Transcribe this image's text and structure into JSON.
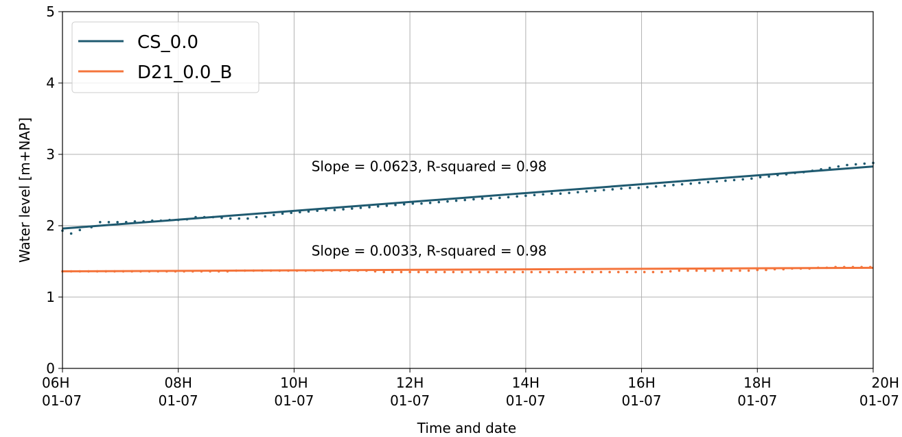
{
  "chart_data": {
    "type": "line",
    "xlabel": "Time and date",
    "ylabel": "Water level [m+NAP]",
    "x_range_hours": [
      6,
      20
    ],
    "ylim": [
      0,
      5
    ],
    "grid": true,
    "legend_position": "top-left",
    "x_ticks": [
      {
        "value": 6,
        "line1": "06H",
        "line2": "01-07"
      },
      {
        "value": 8,
        "line1": "08H",
        "line2": "01-07"
      },
      {
        "value": 10,
        "line1": "10H",
        "line2": "01-07"
      },
      {
        "value": 12,
        "line1": "12H",
        "line2": "01-07"
      },
      {
        "value": 14,
        "line1": "14H",
        "line2": "01-07"
      },
      {
        "value": 16,
        "line1": "16H",
        "line2": "01-07"
      },
      {
        "value": 18,
        "line1": "18H",
        "line2": "01-07"
      },
      {
        "value": 20,
        "line1": "20H",
        "line2": "01-07"
      }
    ],
    "y_ticks": [
      "0",
      "1",
      "2",
      "3",
      "4",
      "5"
    ],
    "series": [
      {
        "name": "CS_0.0",
        "color": "#1f5a70",
        "trend": {
          "start": [
            6,
            1.96
          ],
          "end": [
            20,
            2.83
          ]
        },
        "annotation": {
          "text": "Slope = 0.0623, R-squared = 0.98",
          "x": 10.3,
          "y": 2.83
        },
        "observed": [
          [
            6.0,
            1.93
          ],
          [
            6.15,
            1.89
          ],
          [
            6.3,
            1.94
          ],
          [
            6.5,
            1.98
          ],
          [
            6.65,
            2.05
          ],
          [
            6.8,
            2.05
          ],
          [
            6.95,
            2.05
          ],
          [
            7.1,
            2.05
          ],
          [
            7.25,
            2.06
          ],
          [
            7.4,
            2.06
          ],
          [
            7.55,
            2.07
          ],
          [
            7.7,
            2.07
          ],
          [
            7.85,
            2.08
          ],
          [
            8.0,
            2.08
          ],
          [
            8.15,
            2.09
          ],
          [
            8.3,
            2.12
          ],
          [
            8.45,
            2.12
          ],
          [
            8.6,
            2.12
          ],
          [
            8.75,
            2.11
          ],
          [
            8.9,
            2.1
          ],
          [
            9.05,
            2.1
          ],
          [
            9.2,
            2.1
          ],
          [
            9.35,
            2.12
          ],
          [
            9.5,
            2.13
          ],
          [
            9.65,
            2.15
          ],
          [
            9.8,
            2.17
          ],
          [
            9.95,
            2.18
          ],
          [
            10.1,
            2.19
          ],
          [
            10.25,
            2.2
          ],
          [
            10.4,
            2.21
          ],
          [
            10.55,
            2.22
          ],
          [
            10.7,
            2.22
          ],
          [
            10.85,
            2.23
          ],
          [
            11.0,
            2.24
          ],
          [
            11.15,
            2.25
          ],
          [
            11.3,
            2.26
          ],
          [
            11.45,
            2.27
          ],
          [
            11.6,
            2.28
          ],
          [
            11.75,
            2.29
          ],
          [
            11.9,
            2.3
          ],
          [
            12.05,
            2.31
          ],
          [
            12.2,
            2.31
          ],
          [
            12.35,
            2.32
          ],
          [
            12.5,
            2.33
          ],
          [
            12.65,
            2.34
          ],
          [
            12.8,
            2.35
          ],
          [
            12.95,
            2.36
          ],
          [
            13.1,
            2.37
          ],
          [
            13.25,
            2.38
          ],
          [
            13.4,
            2.38
          ],
          [
            13.55,
            2.39
          ],
          [
            13.7,
            2.4
          ],
          [
            13.85,
            2.41
          ],
          [
            14.0,
            2.42
          ],
          [
            14.15,
            2.43
          ],
          [
            14.3,
            2.44
          ],
          [
            14.45,
            2.45
          ],
          [
            14.6,
            2.45
          ],
          [
            14.75,
            2.46
          ],
          [
            14.9,
            2.47
          ],
          [
            15.05,
            2.48
          ],
          [
            15.2,
            2.49
          ],
          [
            15.35,
            2.5
          ],
          [
            15.5,
            2.51
          ],
          [
            15.65,
            2.52
          ],
          [
            15.8,
            2.53
          ],
          [
            15.95,
            2.53
          ],
          [
            16.1,
            2.54
          ],
          [
            16.25,
            2.55
          ],
          [
            16.4,
            2.56
          ],
          [
            16.55,
            2.57
          ],
          [
            16.7,
            2.58
          ],
          [
            16.85,
            2.59
          ],
          [
            17.0,
            2.6
          ],
          [
            17.15,
            2.61
          ],
          [
            17.3,
            2.62
          ],
          [
            17.45,
            2.63
          ],
          [
            17.6,
            2.64
          ],
          [
            17.75,
            2.65
          ],
          [
            17.9,
            2.66
          ],
          [
            18.05,
            2.68
          ],
          [
            18.2,
            2.69
          ],
          [
            18.35,
            2.71
          ],
          [
            18.5,
            2.72
          ],
          [
            18.65,
            2.74
          ],
          [
            18.8,
            2.75
          ],
          [
            18.95,
            2.77
          ],
          [
            19.1,
            2.79
          ],
          [
            19.25,
            2.81
          ],
          [
            19.4,
            2.83
          ],
          [
            19.55,
            2.85
          ],
          [
            19.7,
            2.86
          ],
          [
            19.85,
            2.87
          ],
          [
            20.0,
            2.88
          ]
        ]
      },
      {
        "name": "D21_0.0_B",
        "color": "#f4743b",
        "trend": {
          "start": [
            6,
            1.36
          ],
          "end": [
            20,
            1.41
          ]
        },
        "annotation": {
          "text": "Slope = 0.0033, R-squared = 0.98",
          "x": 10.3,
          "y": 1.65
        },
        "observed": [
          [
            6.0,
            1.36
          ],
          [
            6.15,
            1.36
          ],
          [
            6.3,
            1.36
          ],
          [
            6.45,
            1.36
          ],
          [
            6.6,
            1.36
          ],
          [
            6.75,
            1.36
          ],
          [
            6.9,
            1.36
          ],
          [
            7.05,
            1.36
          ],
          [
            7.2,
            1.36
          ],
          [
            7.35,
            1.36
          ],
          [
            7.5,
            1.36
          ],
          [
            7.65,
            1.36
          ],
          [
            7.8,
            1.36
          ],
          [
            7.95,
            1.36
          ],
          [
            8.1,
            1.36
          ],
          [
            8.25,
            1.36
          ],
          [
            8.4,
            1.36
          ],
          [
            8.55,
            1.36
          ],
          [
            8.7,
            1.36
          ],
          [
            8.85,
            1.36
          ],
          [
            9.0,
            1.37
          ],
          [
            9.15,
            1.37
          ],
          [
            9.3,
            1.37
          ],
          [
            9.45,
            1.37
          ],
          [
            9.6,
            1.37
          ],
          [
            9.75,
            1.37
          ],
          [
            9.9,
            1.37
          ],
          [
            10.05,
            1.37
          ],
          [
            10.2,
            1.37
          ],
          [
            10.35,
            1.37
          ],
          [
            10.5,
            1.37
          ],
          [
            10.65,
            1.37
          ],
          [
            10.8,
            1.37
          ],
          [
            10.95,
            1.37
          ],
          [
            11.1,
            1.37
          ],
          [
            11.25,
            1.37
          ],
          [
            11.4,
            1.36
          ],
          [
            11.55,
            1.35
          ],
          [
            11.7,
            1.35
          ],
          [
            11.85,
            1.35
          ],
          [
            12.0,
            1.35
          ],
          [
            12.15,
            1.35
          ],
          [
            12.3,
            1.35
          ],
          [
            12.45,
            1.35
          ],
          [
            12.6,
            1.35
          ],
          [
            12.75,
            1.35
          ],
          [
            12.9,
            1.35
          ],
          [
            13.05,
            1.35
          ],
          [
            13.2,
            1.35
          ],
          [
            13.35,
            1.35
          ],
          [
            13.5,
            1.35
          ],
          [
            13.65,
            1.35
          ],
          [
            13.8,
            1.35
          ],
          [
            13.95,
            1.35
          ],
          [
            14.1,
            1.35
          ],
          [
            14.25,
            1.35
          ],
          [
            14.4,
            1.35
          ],
          [
            14.55,
            1.35
          ],
          [
            14.7,
            1.35
          ],
          [
            14.85,
            1.35
          ],
          [
            15.0,
            1.35
          ],
          [
            15.15,
            1.35
          ],
          [
            15.3,
            1.35
          ],
          [
            15.45,
            1.35
          ],
          [
            15.6,
            1.35
          ],
          [
            15.75,
            1.35
          ],
          [
            15.9,
            1.35
          ],
          [
            16.05,
            1.35
          ],
          [
            16.2,
            1.35
          ],
          [
            16.35,
            1.35
          ],
          [
            16.5,
            1.36
          ],
          [
            16.65,
            1.37
          ],
          [
            16.8,
            1.37
          ],
          [
            16.95,
            1.37
          ],
          [
            17.1,
            1.37
          ],
          [
            17.25,
            1.37
          ],
          [
            17.4,
            1.37
          ],
          [
            17.55,
            1.37
          ],
          [
            17.7,
            1.37
          ],
          [
            17.85,
            1.37
          ],
          [
            18.0,
            1.38
          ],
          [
            18.15,
            1.38
          ],
          [
            18.3,
            1.39
          ],
          [
            18.45,
            1.39
          ],
          [
            18.6,
            1.4
          ],
          [
            18.75,
            1.4
          ],
          [
            18.9,
            1.4
          ],
          [
            19.05,
            1.41
          ],
          [
            19.2,
            1.41
          ],
          [
            19.35,
            1.42
          ],
          [
            19.5,
            1.42
          ],
          [
            19.65,
            1.42
          ],
          [
            19.8,
            1.42
          ],
          [
            19.95,
            1.42
          ]
        ]
      }
    ]
  }
}
